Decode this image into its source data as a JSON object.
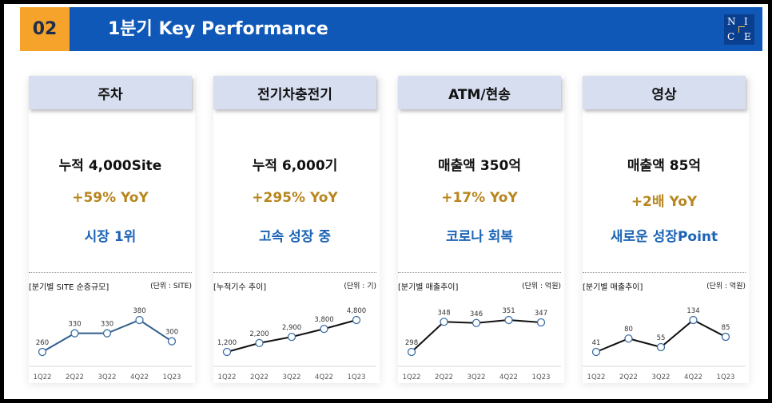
{
  "header": {
    "section_number": "02",
    "title": "1분기 Key Performance",
    "logo_letters": [
      "N",
      "I",
      "C",
      "E"
    ]
  },
  "cards": [
    {
      "title": "주차",
      "line1": "누적 4,000Site",
      "line2": "+59% YoY",
      "line3": "시장 1위",
      "chart_label": "[분기별 SITE 순증규모]",
      "chart_unit": "(단위 : SITE)"
    },
    {
      "title": "전기차충전기",
      "line1": "누적 6,000기",
      "line2": "+295% YoY",
      "line3": "고속 성장 중",
      "chart_label": "[누적기수 추이]",
      "chart_unit": "(단위 : 기)"
    },
    {
      "title": "ATM/현송",
      "line1": "매출액 350억",
      "line2": "+17% YoY",
      "line3": "코로나 회복",
      "chart_label": "[분기별 매출추이]",
      "chart_unit": "(단위 : 억원)"
    },
    {
      "title": "영상",
      "line1": "매출액 85억",
      "line2": "+2배 YoY",
      "line3": "새로운 성장Point",
      "chart_label": "[분기별 매출추이]",
      "chart_unit": "(단위 : 억원)"
    }
  ],
  "chart_data": [
    {
      "type": "line",
      "x": [
        "1Q22",
        "2Q22",
        "3Q22",
        "4Q22",
        "1Q23"
      ],
      "series": [
        {
          "values": [
            260,
            330,
            330,
            380,
            300
          ],
          "labels": [
            "260",
            "330",
            "330",
            "380",
            "300"
          ]
        }
      ],
      "line_color": "#2f5d8c"
    },
    {
      "type": "line",
      "x": [
        "1Q22",
        "2Q22",
        "3Q22",
        "4Q22",
        "1Q23"
      ],
      "series": [
        {
          "values": [
            1200,
            2200,
            2900,
            3800,
            4800
          ],
          "labels": [
            "1,200",
            "2,200",
            "2,900",
            "3,800",
            "4,800"
          ]
        }
      ],
      "line_color": "#111111"
    },
    {
      "type": "line",
      "x": [
        "1Q22",
        "2Q22",
        "3Q22",
        "4Q22",
        "1Q23"
      ],
      "series": [
        {
          "values": [
            298,
            348,
            346,
            351,
            347
          ],
          "labels": [
            "298",
            "348",
            "346",
            "351",
            "347"
          ]
        }
      ],
      "line_color": "#111111"
    },
    {
      "type": "line",
      "x": [
        "1Q22",
        "2Q22",
        "3Q22",
        "4Q22",
        "1Q23"
      ],
      "series": [
        {
          "values": [
            41,
            80,
            55,
            134,
            85
          ],
          "labels": [
            "41",
            "80",
            "55",
            "134",
            "85"
          ]
        }
      ],
      "line_color": "#111111"
    }
  ]
}
